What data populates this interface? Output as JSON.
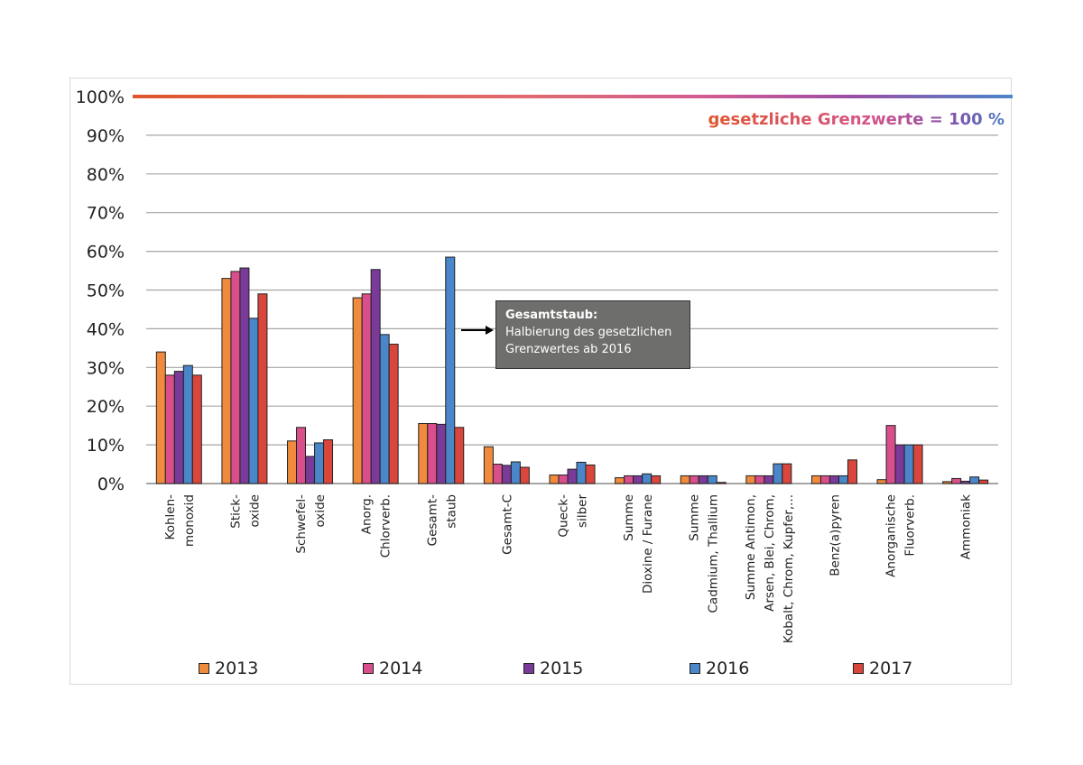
{
  "chart_data": {
    "type": "bar",
    "title": "",
    "xlabel": "",
    "ylabel": "",
    "ylim": [
      0,
      100
    ],
    "y_tick_labels": [
      "0%",
      "10%",
      "20%",
      "30%",
      "40%",
      "50%",
      "60%",
      "70%",
      "80%",
      "90%",
      "100%"
    ],
    "grid": true,
    "legend_position": "bottom",
    "categories": [
      [
        "Kohlen-",
        "monoxid"
      ],
      [
        "Stick-",
        "oxide"
      ],
      [
        "Schwefel-",
        "oxide"
      ],
      [
        "Anorg.",
        "Chlorverb."
      ],
      [
        "Gesamt-",
        "staub"
      ],
      [
        "Gesamt-C"
      ],
      [
        "Queck-",
        "silber"
      ],
      [
        "Summe",
        "Dioxine / Furane"
      ],
      [
        "Summe",
        "Cadmium, Thallium"
      ],
      [
        "Summe Antimon,",
        "Arsen, Blei, Chrom,",
        "Kobalt, Chrom, Kupfer,..."
      ],
      [
        "Benz(a)pyren"
      ],
      [
        "Anorganische",
        "Fluorverb."
      ],
      [
        "Ammoniak"
      ]
    ],
    "series": [
      {
        "name": "2013",
        "color": "#f08a3c",
        "values": [
          34,
          53,
          11,
          48,
          15.5,
          9.5,
          2.2,
          1.5,
          2,
          2,
          2,
          1,
          0.5
        ]
      },
      {
        "name": "2014",
        "color": "#d94f8c",
        "values": [
          28,
          54.8,
          14.5,
          49,
          15.5,
          5,
          2.2,
          2,
          2,
          2,
          2,
          15,
          1.3
        ]
      },
      {
        "name": "2015",
        "color": "#7a3a98",
        "values": [
          29,
          55.7,
          7,
          55.3,
          15.3,
          4.7,
          3.7,
          2,
          2,
          2,
          2,
          10,
          0.6
        ]
      },
      {
        "name": "2016",
        "color": "#4a86c8",
        "values": [
          30.5,
          42.7,
          10.5,
          38.5,
          58.5,
          5.6,
          5.5,
          2.5,
          2,
          5.1,
          2,
          10,
          1.7
        ]
      },
      {
        "name": "2017",
        "color": "#d9463c",
        "values": [
          28,
          49,
          11.3,
          36,
          14.5,
          4.2,
          4.8,
          2,
          0.3,
          5.1,
          6.1,
          10,
          0.9
        ]
      }
    ],
    "annotations": {
      "limit_label": "gesetzliche Grenzwerte = 100 %",
      "box_title": "Gesamtstaub:",
      "box_text": [
        "Halbierung des gesetzlichen",
        "Grenzwertes ab 2016"
      ]
    }
  }
}
